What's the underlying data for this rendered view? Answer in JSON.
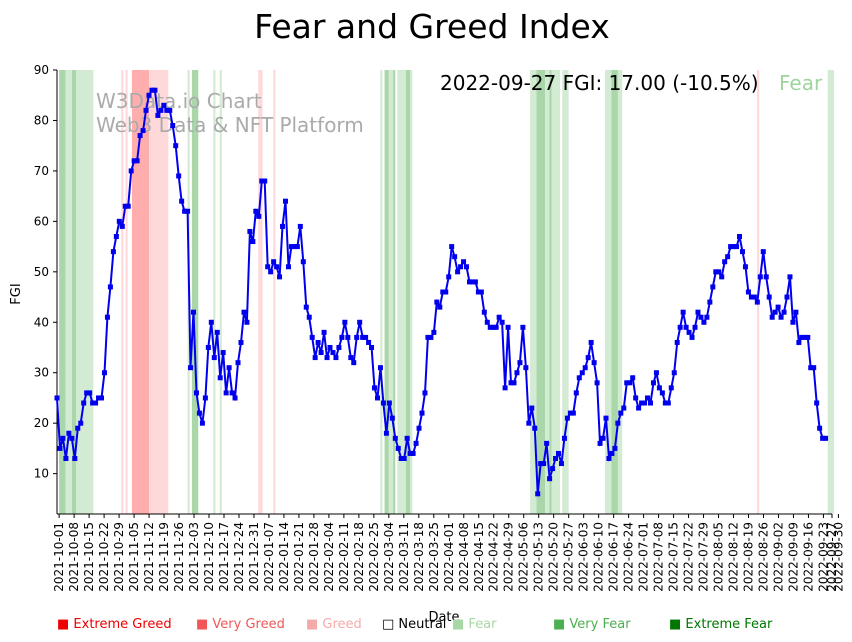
{
  "chart_data": {
    "type": "line",
    "title": "Fear and Greed Index",
    "xlabel": "Date",
    "ylabel": "FGI",
    "ylim": [
      2,
      90
    ],
    "xlim": [
      "2021-09-30",
      "2022-09-27"
    ],
    "y_ticks": [
      10,
      20,
      30,
      40,
      50,
      60,
      70,
      80,
      90
    ],
    "x_ticks": [
      "2021-10-01",
      "2021-10-08",
      "2021-10-15",
      "2021-10-22",
      "2021-10-29",
      "2021-11-05",
      "2021-11-12",
      "2021-11-19",
      "2021-11-26",
      "2021-12-03",
      "2021-12-10",
      "2021-12-17",
      "2021-12-24",
      "2021-12-31",
      "2022-01-07",
      "2022-01-14",
      "2022-01-21",
      "2022-01-28",
      "2022-02-04",
      "2022-02-11",
      "2022-02-18",
      "2022-02-25",
      "2022-03-04",
      "2022-03-11",
      "2022-03-18",
      "2022-03-25",
      "2022-04-01",
      "2022-04-08",
      "2022-04-15",
      "2022-04-22",
      "2022-04-29",
      "2022-05-06",
      "2022-05-13",
      "2022-05-20",
      "2022-05-27",
      "2022-06-03",
      "2022-06-10",
      "2022-06-17",
      "2022-06-24",
      "2022-07-01",
      "2022-07-08",
      "2022-07-15",
      "2022-07-22",
      "2022-07-29",
      "2022-08-05",
      "2022-08-12",
      "2022-08-19",
      "2022-08-26",
      "2022-09-02",
      "2022-09-09",
      "2022-09-16",
      "2022-09-23",
      "2022-09-27",
      "2022-09-30"
    ],
    "grid": false,
    "legend_position": "bottom",
    "annotation": {
      "text": "2022-09-27 FGI: 17.00 (-10.5%)",
      "status": "Fear",
      "status_color": "#9fd49f"
    },
    "watermark": [
      "W3Data.io Chart",
      "Web3 Data & NFT Platform"
    ],
    "series": [
      {
        "color": "#0000ee",
        "marker": "square",
        "values": [
          25,
          15,
          17,
          13,
          18,
          17,
          13,
          19,
          20,
          24,
          26,
          26,
          24,
          24,
          25,
          25,
          30,
          41,
          47,
          54,
          57,
          60,
          59,
          63,
          63,
          70,
          72,
          72,
          77,
          78,
          82,
          85,
          86,
          86,
          81,
          82,
          83,
          82,
          82,
          79,
          75,
          69,
          64,
          62,
          62,
          31,
          42,
          26,
          22,
          20,
          25,
          35,
          40,
          33,
          38,
          29,
          34,
          26,
          31,
          26,
          25,
          32,
          36,
          42,
          40,
          58,
          56,
          62,
          61,
          68,
          68,
          51,
          50,
          52,
          51,
          49,
          59,
          64,
          51,
          55,
          55,
          55,
          59,
          52,
          43,
          41,
          37,
          33,
          36,
          34,
          38,
          33,
          35,
          34,
          33,
          35,
          37,
          40,
          37,
          33,
          32,
          37,
          40,
          37,
          37,
          36,
          35,
          27,
          25,
          31,
          24,
          18,
          24,
          21,
          17,
          15,
          13,
          13,
          17,
          14,
          14,
          16,
          19,
          22,
          26,
          37,
          37,
          38,
          44,
          43,
          46,
          46,
          49,
          55,
          53,
          50,
          51,
          52,
          51,
          48,
          48,
          48,
          46,
          46,
          42,
          40,
          39,
          39,
          39,
          41,
          40,
          27,
          39,
          28,
          28,
          30,
          32,
          39,
          31,
          20,
          23,
          19,
          6,
          12,
          12,
          16,
          9,
          11,
          13,
          14,
          12,
          17,
          21,
          22,
          22,
          26,
          29,
          30,
          31,
          33,
          36,
          32,
          28,
          16,
          17,
          21,
          13,
          14,
          15,
          20,
          22,
          23,
          28,
          28,
          29,
          25,
          23,
          24,
          24,
          25,
          24,
          28,
          30,
          27,
          26,
          24,
          24,
          27,
          30,
          36,
          39,
          42,
          39,
          38,
          37,
          39,
          42,
          41,
          40,
          41,
          44,
          47,
          50,
          50,
          49,
          52,
          53,
          55,
          55,
          55,
          57,
          54,
          51,
          46,
          45,
          45,
          44,
          49,
          54,
          49,
          45,
          41,
          42,
          43,
          41,
          42,
          45,
          49,
          40,
          42,
          36,
          37,
          37,
          37,
          31,
          31,
          24,
          19,
          17,
          17
        ]
      }
    ],
    "shaded_bands": [
      {
        "range": [
          "2021-10-01",
          "2021-10-04"
        ],
        "category": "Very Fear"
      },
      {
        "range": [
          "2021-10-04",
          "2021-10-07"
        ],
        "category": "Fear"
      },
      {
        "range": [
          "2021-10-07",
          "2021-10-09"
        ],
        "category": "Very Fear"
      },
      {
        "range": [
          "2021-10-09",
          "2021-10-17"
        ],
        "category": "Fear"
      },
      {
        "range": [
          "2021-10-30",
          "2021-10-31"
        ],
        "category": "Greed"
      },
      {
        "range": [
          "2021-11-01",
          "2021-11-02"
        ],
        "category": "Greed"
      },
      {
        "range": [
          "2021-11-04",
          "2021-11-08"
        ],
        "category": "Very Greed"
      },
      {
        "range": [
          "2021-11-08",
          "2021-11-12"
        ],
        "category": "Very Greed"
      },
      {
        "range": [
          "2021-11-12",
          "2021-11-21"
        ],
        "category": "Greed"
      },
      {
        "range": [
          "2021-11-30",
          "2021-12-01"
        ],
        "category": "Fear"
      },
      {
        "range": [
          "2021-12-02",
          "2021-12-05"
        ],
        "category": "Very Fear"
      },
      {
        "range": [
          "2021-12-12",
          "2021-12-13"
        ],
        "category": "Fear"
      },
      {
        "range": [
          "2021-12-15",
          "2021-12-16"
        ],
        "category": "Fear"
      },
      {
        "range": [
          "2022-01-02",
          "2022-01-04"
        ],
        "category": "Greed"
      },
      {
        "range": [
          "2022-01-09",
          "2022-01-10"
        ],
        "category": "Greed"
      },
      {
        "range": [
          "2022-02-28",
          "2022-03-01"
        ],
        "category": "Fear"
      },
      {
        "range": [
          "2022-03-02",
          "2022-03-04"
        ],
        "category": "Very Fear"
      },
      {
        "range": [
          "2022-03-04",
          "2022-03-06"
        ],
        "category": "Fear"
      },
      {
        "range": [
          "2022-03-06",
          "2022-03-07"
        ],
        "category": "Very Fear"
      },
      {
        "range": [
          "2022-03-08",
          "2022-03-12"
        ],
        "category": "Fear"
      },
      {
        "range": [
          "2022-03-12",
          "2022-03-14"
        ],
        "category": "Very Fear"
      },
      {
        "range": [
          "2022-03-14",
          "2022-03-15"
        ],
        "category": "Fear"
      },
      {
        "range": [
          "2022-05-09",
          "2022-05-12"
        ],
        "category": "Fear"
      },
      {
        "range": [
          "2022-05-12",
          "2022-05-16"
        ],
        "category": "Very Fear"
      },
      {
        "range": [
          "2022-05-16",
          "2022-05-18"
        ],
        "category": "Fear"
      },
      {
        "range": [
          "2022-05-18",
          "2022-05-19"
        ],
        "category": "Very Fear"
      },
      {
        "range": [
          "2022-05-19",
          "2022-05-23"
        ],
        "category": "Fear"
      },
      {
        "range": [
          "2022-05-24",
          "2022-05-27"
        ],
        "category": "Fear"
      },
      {
        "range": [
          "2022-06-13",
          "2022-06-16"
        ],
        "category": "Fear"
      },
      {
        "range": [
          "2022-06-16",
          "2022-06-19"
        ],
        "category": "Very Fear"
      },
      {
        "range": [
          "2022-06-19",
          "2022-06-21"
        ],
        "category": "Fear"
      },
      {
        "range": [
          "2022-08-23",
          "2022-08-24"
        ],
        "category": "Greed"
      },
      {
        "range": [
          "2022-09-25",
          "2022-09-28"
        ],
        "category": "Fear"
      }
    ],
    "legend": [
      {
        "label": "Extreme Greed",
        "color": "#ee0000"
      },
      {
        "label": "Very Greed",
        "color": "#f25757"
      },
      {
        "label": "Greed",
        "color": "#f5aaaa"
      },
      {
        "label": "Neutral",
        "color": "#000000"
      },
      {
        "label": "Fear",
        "color": "#a6d8a6"
      },
      {
        "label": "Very Fear",
        "color": "#4caf50"
      },
      {
        "label": "Extreme Fear",
        "color": "#007700"
      }
    ],
    "band_colors": {
      "Greed": "#ffd9d9",
      "Very Greed": "#ffadad",
      "Fear": "#d3ead3",
      "Very Fear": "#a9d7a9"
    }
  }
}
